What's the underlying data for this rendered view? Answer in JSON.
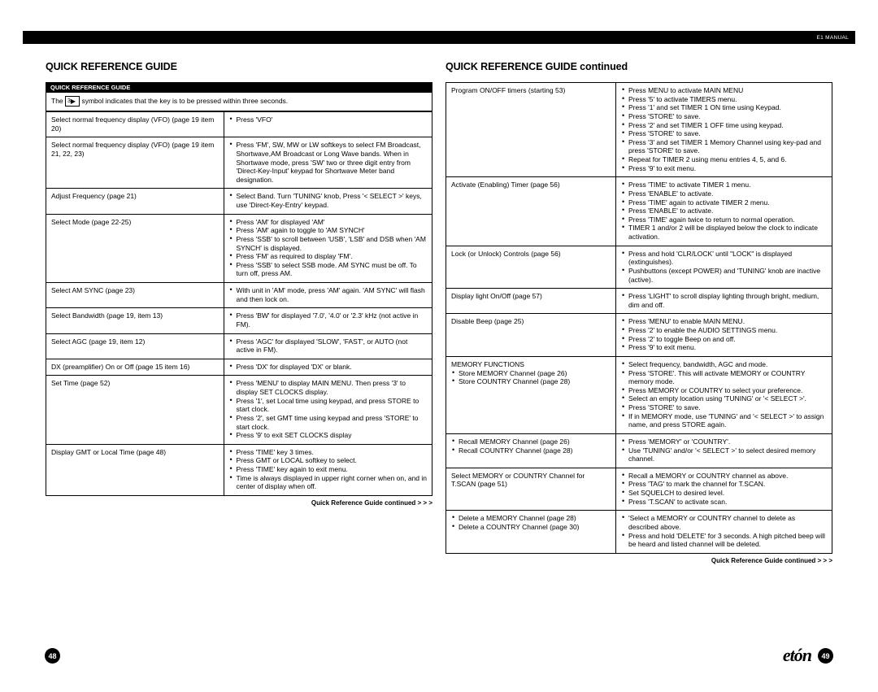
{
  "header": {
    "manual_label": "E1 MANUAL"
  },
  "left_page": {
    "title": "QUICK REFERENCE GUIDE",
    "subhead": "QUICK REFERENCE GUIDE",
    "intro_prefix": "The ",
    "intro_key": "3",
    "intro_suffix": " symbol indicates that the key is to be pressed within three seconds.",
    "rows": [
      {
        "l": "Select normal frequency display (VFO) (page 19 item 20)",
        "r": [
          "Press 'VFO'"
        ]
      },
      {
        "l": "Select normal frequency display (VFO) (page 19 item 21, 22, 23)",
        "r": [
          "Press 'FM', SW, MW or LW softkeys to select FM Broadcast, Shortwave,AM Broadcast or Long Wave bands. When in Shortwave mode, press 'SW' two or three digit entry from 'Direct-Key-Input' keypad for Shortwave Meter band designation."
        ]
      },
      {
        "l": "Adjust Frequency (page 21)",
        "r": [
          "Select Band. Turn 'TUNING' knob, Press '< SELECT >' keys, use 'Direct-Key-Entry' keypad."
        ]
      },
      {
        "l": "Select Mode (page 22-25)",
        "r": [
          "Press 'AM' for displayed 'AM'",
          "Press 'AM' again to toggle to 'AM SYNCH'",
          "Press 'SSB' to scroll between 'USB', 'LSB' and DSB when 'AM SYNCH' is displayed.",
          "Press 'FM' as required to display 'FM'.",
          "Press 'SSB' to select SSB mode. AM SYNC must be off. To turn off, press AM."
        ]
      },
      {
        "l": "Select AM SYNC (page 23)",
        "r": [
          "With unit in 'AM' mode, press 'AM' again. 'AM SYNC' will flash and then lock on."
        ]
      },
      {
        "l": "Select Bandwidth (page 19, item 13)",
        "r": [
          "Press 'BW' for displayed '7.0', '4.0' or '2.3' kHz (not active in FM)."
        ]
      },
      {
        "l": "Select AGC (page 19, item 12)",
        "r": [
          "Press 'AGC' for displayed 'SLOW', 'FAST', or AUTO (not active in FM)."
        ]
      },
      {
        "l": "DX (preamplifier) On or Off (page 15 item 16)",
        "r": [
          "Press 'DX' for displayed 'DX' or blank."
        ]
      },
      {
        "l": "Set Time (page 52)",
        "r": [
          "Press 'MENU' to display MAIN MENU. Then press '3' to display SET CLOCKS display.",
          "Press '1', set Local time using keypad, and press STORE to start clock.",
          "Press '2', set GMT time using keypad and press 'STORE' to start clock.",
          "Press '9' to exit SET CLOCKS display"
        ]
      },
      {
        "l": "Display GMT or Local Time (page 48)",
        "r": [
          "Press 'TIME' key 3 times.",
          "Press GMT or LOCAL softkey to select.",
          "Press 'TIME' key again to exit menu.",
          "Time is always displayed in upper right corner when on, and in center of display when off."
        ]
      }
    ],
    "continued": "Quick Reference Guide continued > > >",
    "page_number": "48"
  },
  "right_page": {
    "title": "QUICK REFERENCE GUIDE continued",
    "rows": [
      {
        "l": "Program ON/OFF timers (starting 53)",
        "r": [
          "Press MENU to activate MAIN MENU",
          "Press '5' to activate TIMERS menu.",
          "Press '1' and set TIMER 1 ON time using Keypad.",
          "Press 'STORE' to save.",
          "Press '2' and set TIMER 1 OFF time using keypad.",
          "Press 'STORE' to save.",
          "Press '3' and set TIMER 1 Memory Channel using key-pad and press 'STORE' to save.",
          "Repeat for TIMER 2 using menu entries 4, 5, and 6.",
          "Press '9' to exit menu."
        ]
      },
      {
        "l": "Activate (Enabling) Timer (page 56)",
        "r": [
          "Press 'TIME' to activate TIMER 1 menu.",
          "Press 'ENABLE' to activate.",
          "Press 'TIME' again to activate TIMER 2 menu.",
          "Press 'ENABLE' to activate.",
          "Press 'TIME' again twice to return to normal operation.",
          "TIMER 1 and/or 2 will be displayed below the clock to indicate activation."
        ]
      },
      {
        "l": "Lock (or Unlock) Controls (page 56)",
        "r": [
          "Press and hold 'CLR/LOCK' until \"LOCK\" is displayed (extinguishes).",
          "Pushbuttons (except POWER) and 'TUNING' knob are inactive (active)."
        ]
      },
      {
        "l": "Display light On/Off (page 57)",
        "r": [
          "Press 'LIGHT' to scroll display lighting through bright, medium, dim and off."
        ]
      },
      {
        "l": "Disable Beep (page 25)",
        "r": [
          "Press 'MENU' to enable MAIN MENU.",
          "Press '2' to enable the AUDIO SETTINGS menu.",
          "Press '2' to toggle Beep on and off.",
          "Press '9' to exit menu."
        ]
      },
      {
        "l_plain": "MEMORY FUNCTIONS",
        "l_bullets": [
          "Store MEMORY Channel (page 26)",
          "Store COUNTRY Channel (page 28)"
        ],
        "r": [
          "Select frequency, bandwidth, AGC and mode.",
          "Press 'STORE'. This will activate MEMORY or COUNTRY memory mode.",
          "Press MEMORY or COUNTRY to select your preference.",
          "Select an empty location using 'TUNING' or '< SELECT >'.",
          "Press 'STORE' to save.",
          "If in MEMORY mode, use 'TUNING' and '< SELECT >' to assign name, and press STORE again."
        ]
      },
      {
        "l_bullets": [
          "Recall MEMORY Channel (page 26)",
          "Recall COUNTRY Channel (page 28)"
        ],
        "r": [
          "Press 'MEMORY' or 'COUNTRY'.",
          "Use 'TUNING' and/or '< SELECT >' to select desired memory channel."
        ]
      },
      {
        "l": "Select MEMORY or COUNTRY Channel for T.SCAN (page 51)",
        "r": [
          "Recall a MEMORY or COUNTRY channel as above.",
          "Press 'TAG' to mark the channel for T.SCAN.",
          "Set SQUELCH to desired level.",
          "Press 'T.SCAN' to activate scan."
        ]
      },
      {
        "l_bullets": [
          "Delete a MEMORY Channel (page 28)",
          "Delete a COUNTRY Channel (page 30)"
        ],
        "r": [
          "'Select a MEMORY or COUNTRY channel to delete as described above.",
          "Press and hold 'DELETE' for 3 seconds. A high pitched beep will be heard and listed channel will be deleted."
        ]
      }
    ],
    "continued": "Quick Reference Guide continued > > >",
    "page_number": "49"
  },
  "brand": "etón"
}
